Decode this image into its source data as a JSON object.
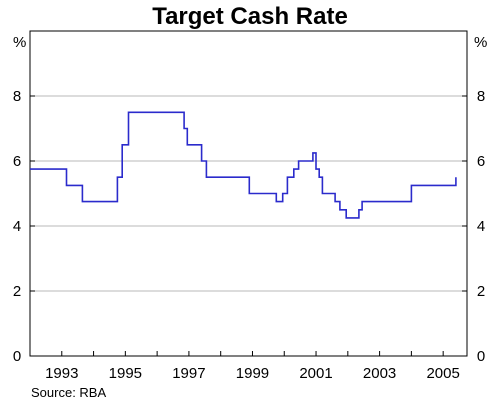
{
  "chart_data": {
    "type": "line",
    "title": "Target Cash Rate",
    "unit_left": "%",
    "unit_right": "%",
    "source": "Source: RBA",
    "xlim": [
      1992.0,
      2005.75
    ],
    "ylim": [
      0,
      10
    ],
    "y_ticks": [
      0,
      2,
      4,
      6,
      8
    ],
    "x_tick_labels": [
      "1993",
      "1995",
      "1997",
      "1999",
      "2001",
      "2003",
      "2005"
    ],
    "x_tick_values": [
      1993.0,
      1995.0,
      1997.0,
      1999.0,
      2001.0,
      2003.0,
      2005.0
    ],
    "grid": "horizontal",
    "line_color": "#2b2bcc",
    "series": [
      {
        "x": [
          1992.0,
          1993.15,
          1993.65,
          1994.6,
          1994.75,
          1994.9,
          1995.1,
          1996.55,
          1996.85,
          1996.95,
          1997.4,
          1997.55,
          1998.9,
          1999.75,
          1999.95,
          2000.1,
          2000.3,
          2000.45,
          2000.9,
          2001.0,
          2001.1,
          2001.2,
          2001.6,
          2001.75,
          2001.95,
          2002.35,
          2002.45,
          2003.9,
          2004.0,
          2005.0,
          2005.4
        ],
        "y": [
          5.75,
          5.25,
          4.75,
          4.75,
          5.5,
          6.5,
          7.5,
          7.5,
          7.0,
          6.5,
          6.0,
          5.5,
          5.0,
          4.75,
          5.0,
          5.5,
          5.75,
          6.0,
          6.25,
          5.75,
          5.5,
          5.0,
          4.75,
          4.5,
          4.25,
          4.5,
          4.75,
          4.75,
          5.25,
          5.25,
          5.5
        ]
      }
    ]
  }
}
